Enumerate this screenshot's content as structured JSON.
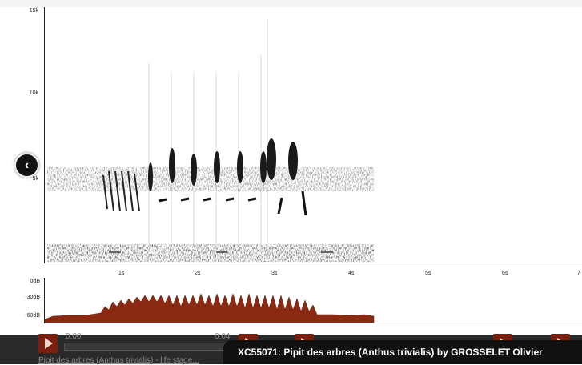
{
  "spectrogram": {
    "y_ticks": [
      "15k",
      "10k",
      "5k"
    ],
    "x_ticks": [
      "1s",
      "2s",
      "3s",
      "4s",
      "5s",
      "6s",
      "7"
    ]
  },
  "level_meter": {
    "db_ticks": [
      "0dB",
      "-30dB",
      "-60dB"
    ],
    "fill_color": "#8b2a12"
  },
  "background_player": {
    "time_left": "0:00",
    "time_right": "0:04",
    "title_prefix": "Pipit des arbres (Anthus trivialis)",
    "title_suffix": " - life stage..."
  },
  "caption": {
    "text": "XC55071: Pipit des arbres (Anthus trivialis) by GROSSELET Olivier"
  },
  "icons": {
    "back": "chevron-left-icon",
    "play": "play-icon"
  }
}
